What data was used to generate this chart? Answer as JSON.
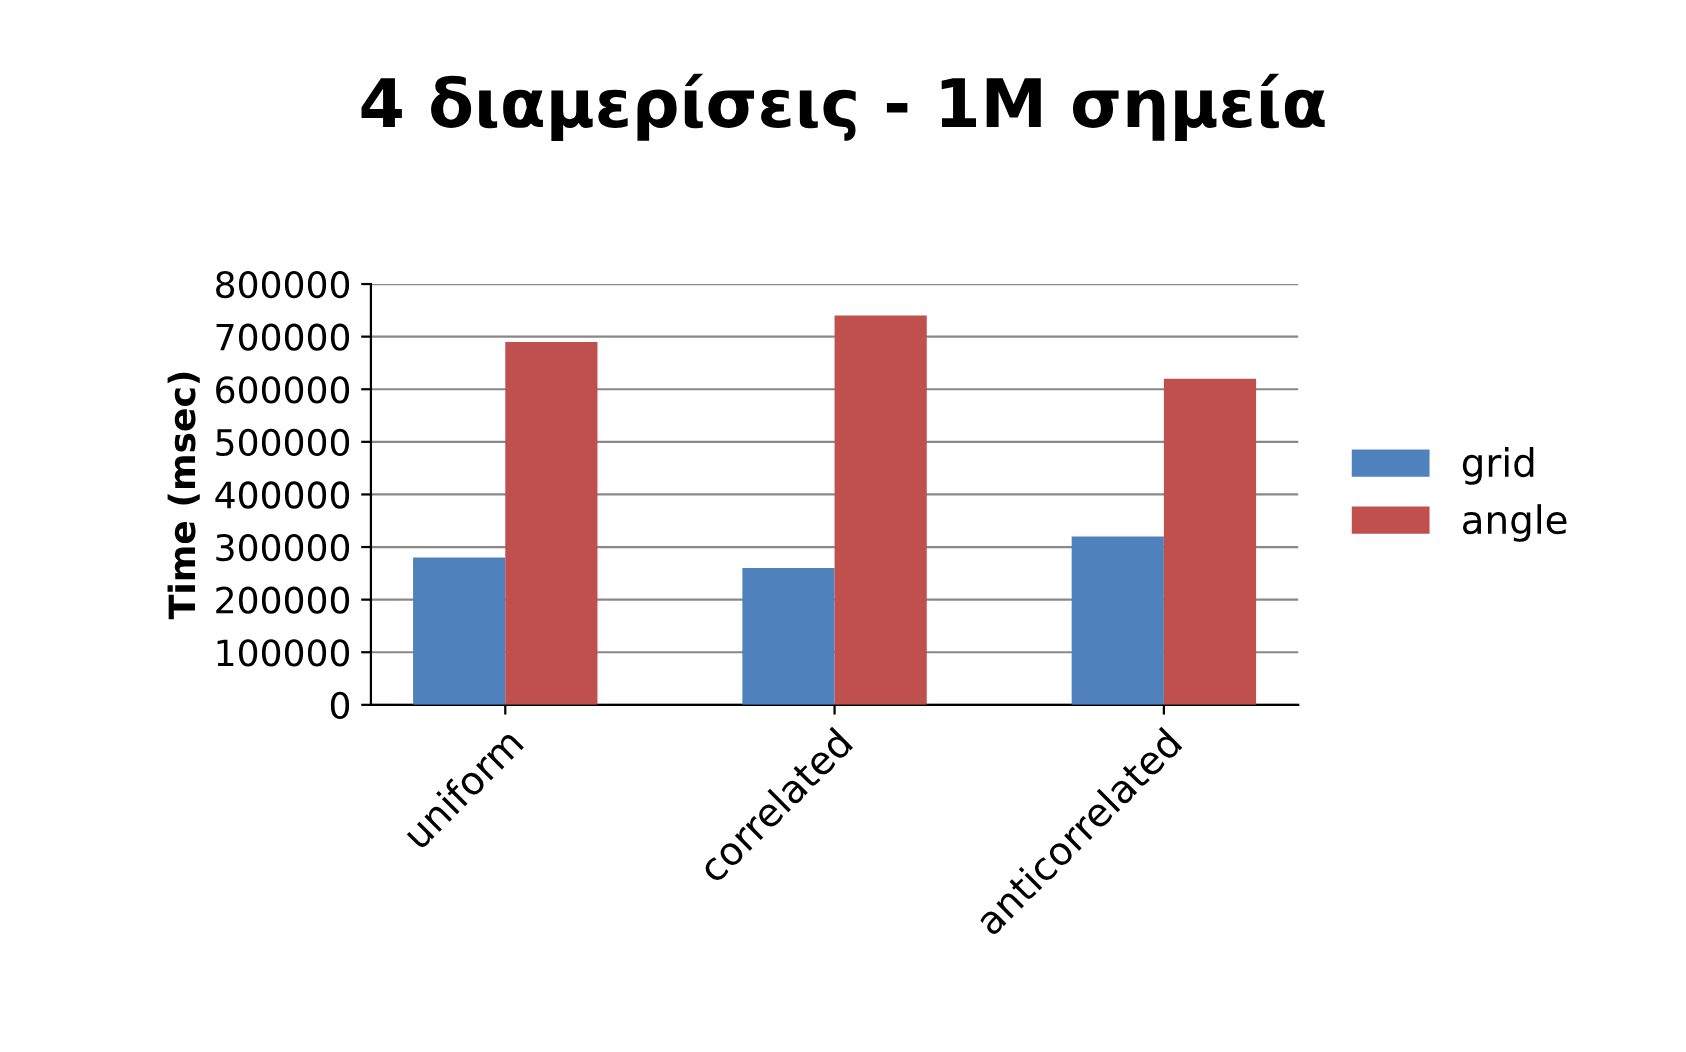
{
  "chart_data": {
    "type": "bar",
    "title": "4 διαμερίσεις - 1M σημεία",
    "ylabel": "Time (msec)",
    "categories": [
      "uniform",
      "correlated",
      "anticorrelated"
    ],
    "series": [
      {
        "name": "grid",
        "color": "#4f81bd",
        "values": [
          280000,
          260000,
          320000
        ]
      },
      {
        "name": "angle",
        "color": "#c0504d",
        "values": [
          690000,
          740000,
          620000
        ]
      }
    ],
    "ylim": [
      0,
      800000
    ],
    "yticks": [
      0,
      100000,
      200000,
      300000,
      400000,
      500000,
      600000,
      700000,
      800000
    ],
    "grid": "y",
    "legend": "right"
  }
}
